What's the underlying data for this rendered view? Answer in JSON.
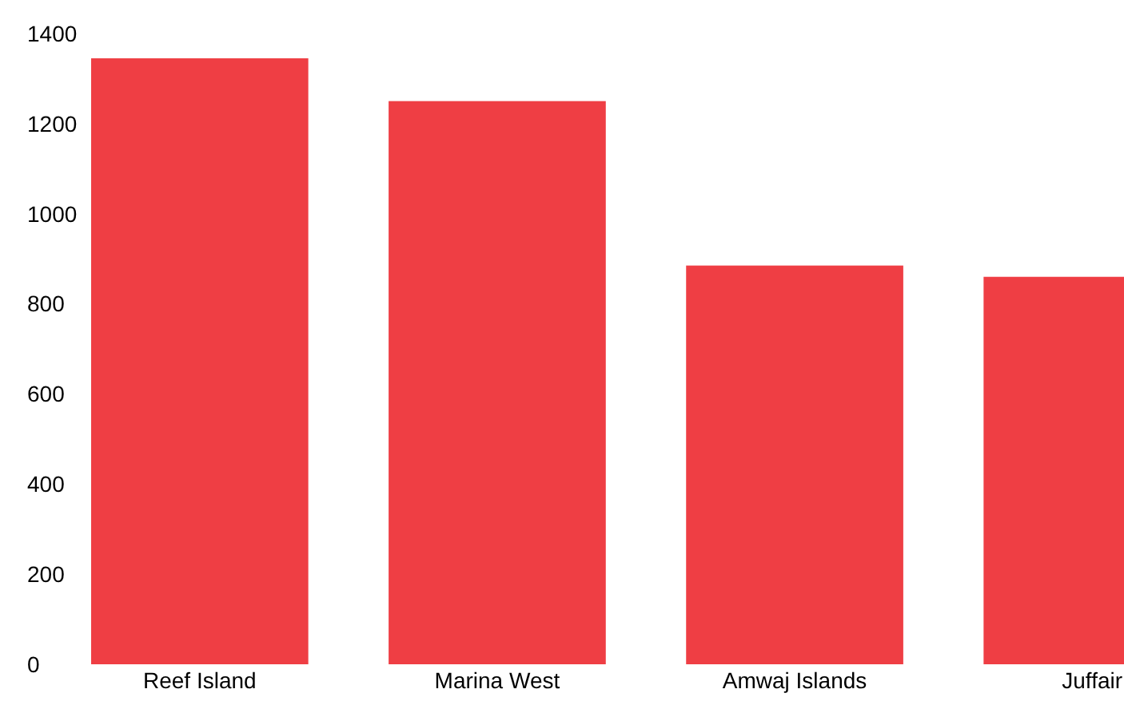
{
  "chart_data": {
    "type": "bar",
    "categories": [
      "Reef Island",
      "Marina West",
      "Amwaj Islands",
      "Juffair"
    ],
    "values": [
      1345,
      1250,
      885,
      860
    ],
    "color": "#ef3e44",
    "ylim": [
      0,
      1400
    ],
    "yticks": [
      0,
      200,
      400,
      600,
      800,
      1000,
      1200,
      1400
    ],
    "grid": false
  }
}
